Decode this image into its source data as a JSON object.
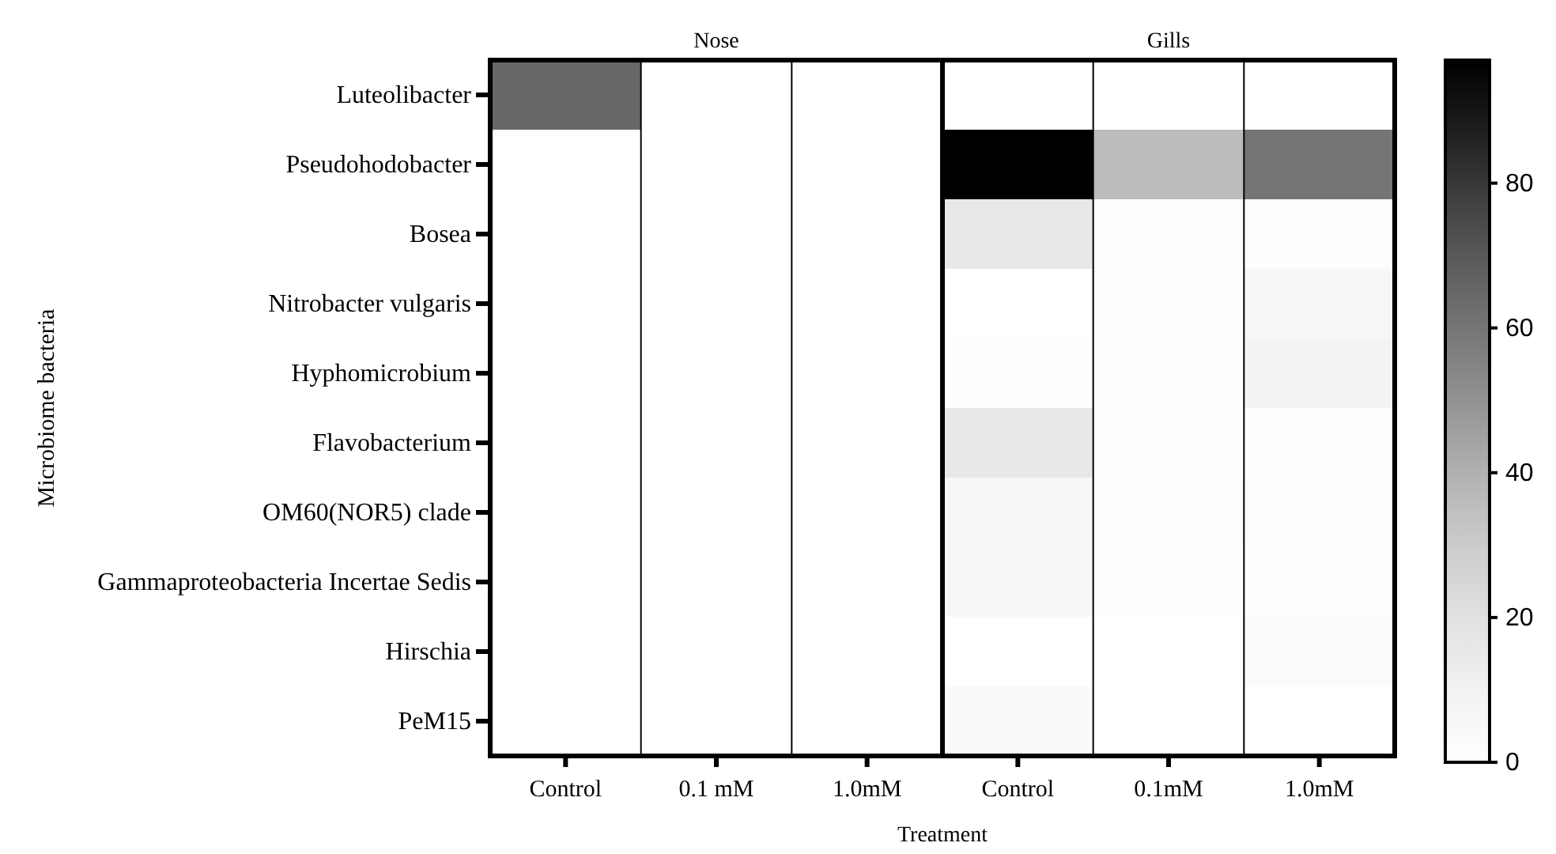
{
  "chart_data": {
    "type": "heatmap",
    "xlabel": "Treatment",
    "ylabel": "Microbiome bacteria",
    "annotations": [
      "Nose",
      "Gills"
    ],
    "categories": [
      "Control",
      "0.1 mM",
      "1.0mM",
      "Control",
      "0.1mM",
      "1.0mM"
    ],
    "y_categories": [
      "Luteolibacter",
      "Pseudohodobacter",
      "Bosea",
      "Nitrobacter vulgaris",
      "Hyphomicrobium",
      "Flavobacterium",
      "OM60(NOR5) clade",
      "Gammaproteobacteria Incertae Sedis",
      "Hirschia",
      "PeM15"
    ],
    "cells": [
      [
        65,
        0,
        0,
        0,
        0,
        0
      ],
      [
        0,
        0,
        0,
        97,
        36,
        60
      ],
      [
        0,
        0,
        0,
        16,
        2,
        2
      ],
      [
        0,
        0,
        0,
        0,
        1,
        6
      ],
      [
        0,
        0,
        0,
        1,
        1,
        9
      ],
      [
        0,
        0,
        0,
        16,
        1,
        1
      ],
      [
        0,
        0,
        0,
        6,
        2,
        1
      ],
      [
        0,
        0,
        0,
        6,
        1,
        1
      ],
      [
        0,
        0,
        0,
        0,
        0,
        3
      ],
      [
        0,
        0,
        0,
        4,
        0,
        0
      ]
    ],
    "clim": [
      0,
      97
    ],
    "cticks": [
      0,
      20,
      40,
      60,
      80
    ]
  }
}
